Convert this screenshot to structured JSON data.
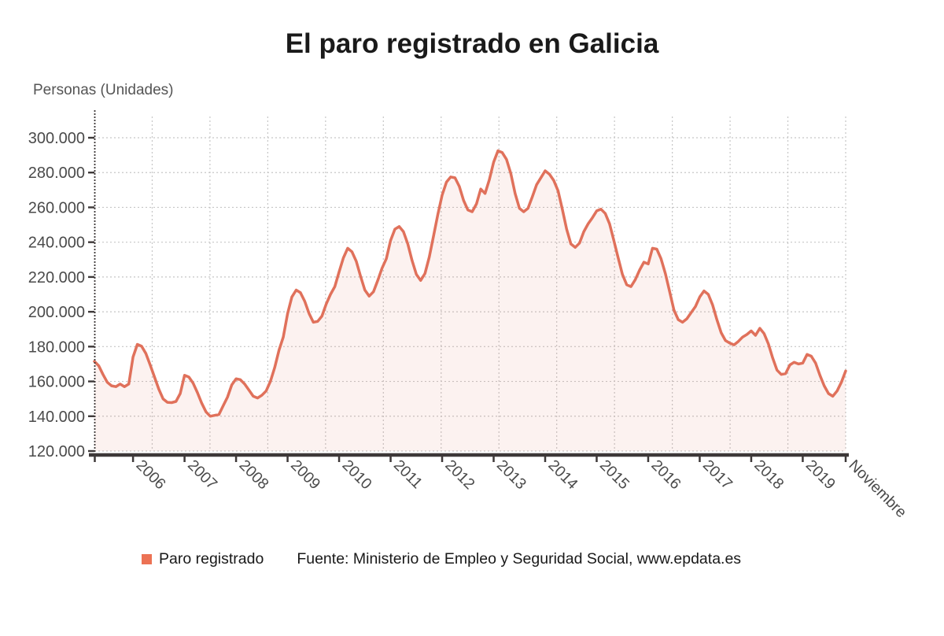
{
  "title": "El paro registrado en Galicia",
  "y_axis_title": "Personas (Unidades)",
  "legend": {
    "series_label": "Paro registrado",
    "source": "Fuente: Ministerio de Empleo y Seguridad Social, www.epdata.es"
  },
  "colors": {
    "line": "#e0715b",
    "legend_swatch": "#ec7254",
    "fill": "rgba(224,113,91,0.09)",
    "grid": "#c6c6c6",
    "axis": "#3d3838",
    "tick_text": "#4a4a4a",
    "title_text": "#1a1a1a"
  },
  "chart_data": {
    "type": "line",
    "title": "El paro registrado en Galicia",
    "ylabel": "Personas (Unidades)",
    "grid": true,
    "legend_position": "bottom",
    "ylim": [
      120000,
      300000
    ],
    "y_ticks": [
      120000,
      140000,
      160000,
      180000,
      200000,
      220000,
      240000,
      260000,
      280000,
      300000
    ],
    "y_tick_labels": [
      "120.000",
      "140.000",
      "160.000",
      "180.000",
      "200.000",
      "220.000",
      "240.000",
      "260.000",
      "280.000",
      "300.000"
    ],
    "x_ticks": [
      {
        "label": "2006",
        "index": 9
      },
      {
        "label": "2007",
        "index": 21
      },
      {
        "label": "2008",
        "index": 33
      },
      {
        "label": "2009",
        "index": 45
      },
      {
        "label": "2010",
        "index": 57
      },
      {
        "label": "2011",
        "index": 69
      },
      {
        "label": "2012",
        "index": 81
      },
      {
        "label": "2013",
        "index": 93
      },
      {
        "label": "2014",
        "index": 105
      },
      {
        "label": "2015",
        "index": 117
      },
      {
        "label": "2016",
        "index": 129
      },
      {
        "label": "2017",
        "index": 141
      },
      {
        "label": "2018",
        "index": 153
      },
      {
        "label": "2019",
        "index": 165
      },
      {
        "label": "Noviembre",
        "index": 175
      }
    ],
    "x_unit": "month",
    "series": [
      {
        "name": "Paro registrado",
        "values": [
          171500,
          169000,
          164000,
          159500,
          157500,
          157000,
          158500,
          157000,
          158500,
          174000,
          181300,
          180200,
          176000,
          169500,
          162500,
          155500,
          150000,
          148000,
          147800,
          148500,
          153000,
          163500,
          162500,
          159000,
          153500,
          147500,
          142500,
          140000,
          140500,
          141000,
          146000,
          151000,
          158000,
          161500,
          161000,
          158500,
          155000,
          151500,
          150500,
          152000,
          154500,
          160000,
          168000,
          178000,
          185500,
          199000,
          208500,
          212500,
          211000,
          206000,
          199000,
          194000,
          194500,
          197500,
          204500,
          210000,
          214500,
          223000,
          231000,
          236500,
          234500,
          229000,
          220500,
          212500,
          209000,
          211500,
          218000,
          225000,
          230500,
          241000,
          247500,
          249000,
          246000,
          239000,
          229500,
          221500,
          218000,
          222000,
          231500,
          243500,
          256000,
          267000,
          274500,
          277500,
          277000,
          272000,
          264000,
          258500,
          257500,
          262000,
          270500,
          268000,
          276000,
          286000,
          292500,
          291500,
          287500,
          279500,
          268000,
          259500,
          257500,
          259500,
          266000,
          273000,
          277000,
          281000,
          279000,
          275500,
          269500,
          259000,
          247500,
          239000,
          237000,
          239500,
          246000,
          250500,
          254000,
          258000,
          259000,
          256500,
          250500,
          241000,
          231000,
          221500,
          215500,
          214500,
          218500,
          224000,
          228500,
          227500,
          236500,
          236000,
          230500,
          222000,
          211500,
          201000,
          195500,
          194000,
          196000,
          199500,
          203000,
          208500,
          212000,
          210000,
          204000,
          195500,
          188000,
          183500,
          182000,
          181000,
          183000,
          185500,
          187000,
          189000,
          186500,
          190500,
          187500,
          181500,
          173500,
          166500,
          164000,
          164500,
          169500,
          171000,
          170000,
          170500,
          175500,
          174500,
          170500,
          163500,
          157500,
          153000,
          151500,
          154500,
          159500,
          166000
        ]
      }
    ]
  }
}
